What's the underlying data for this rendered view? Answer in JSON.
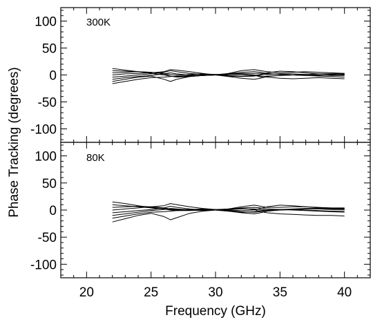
{
  "chart_data": [
    {
      "type": "line",
      "annotation": "300K",
      "xlabel": "Frequency (GHz)",
      "ylabel": "Phase Tracking (degrees)",
      "xlim": [
        18,
        42
      ],
      "ylim": [
        -125,
        125
      ],
      "xticks": [
        20,
        25,
        30,
        35,
        40
      ],
      "yticks": [
        -100,
        -50,
        0,
        50,
        100
      ],
      "grid": false,
      "x": [
        22,
        23,
        24,
        25,
        26,
        26.5,
        27,
        28,
        29,
        30,
        31,
        32,
        33,
        33.5,
        34,
        35,
        36,
        37,
        38,
        39,
        40
      ],
      "series": [
        {
          "values": [
            -16,
            -12,
            -8,
            -5,
            -4,
            -3,
            -2,
            -1,
            0,
            1,
            2,
            3,
            3,
            3,
            2,
            1,
            0,
            -1,
            -2,
            -3,
            -4
          ]
        },
        {
          "values": [
            -12,
            -8,
            -4,
            -2,
            -8,
            -12,
            -8,
            -3,
            -1,
            0,
            1,
            2,
            0,
            -4,
            -2,
            -1,
            0,
            1,
            2,
            2,
            3
          ]
        },
        {
          "values": [
            -8,
            -5,
            -3,
            -1,
            2,
            4,
            2,
            0,
            -1,
            0,
            2,
            5,
            6,
            5,
            3,
            1,
            0,
            -1,
            -1,
            0,
            1
          ]
        },
        {
          "values": [
            -4,
            -2,
            0,
            2,
            5,
            8,
            6,
            3,
            1,
            0,
            -2,
            -3,
            -2,
            0,
            1,
            2,
            2,
            1,
            0,
            -1,
            -1
          ]
        },
        {
          "values": [
            0,
            2,
            3,
            4,
            6,
            10,
            9,
            6,
            3,
            0,
            -3,
            -6,
            -8,
            -6,
            -3,
            -1,
            0,
            1,
            2,
            2,
            2
          ]
        },
        {
          "values": [
            4,
            5,
            6,
            5,
            3,
            1,
            0,
            1,
            2,
            1,
            -1,
            -2,
            -1,
            1,
            4,
            7,
            6,
            4,
            2,
            1,
            0
          ]
        },
        {
          "values": [
            8,
            7,
            6,
            5,
            2,
            -2,
            -4,
            -3,
            -1,
            0,
            1,
            1,
            0,
            -2,
            -4,
            -6,
            -7,
            -6,
            -5,
            -6,
            -7
          ]
        },
        {
          "values": [
            12,
            9,
            6,
            3,
            0,
            -2,
            -3,
            -2,
            -1,
            0,
            3,
            8,
            10,
            8,
            6,
            4,
            5,
            6,
            5,
            4,
            3
          ]
        }
      ]
    },
    {
      "type": "line",
      "annotation": "80K",
      "xlabel": "Frequency (GHz)",
      "ylabel": "Phase Tracking (degrees)",
      "xlim": [
        18,
        42
      ],
      "ylim": [
        -125,
        125
      ],
      "xticks": [
        20,
        25,
        30,
        35,
        40
      ],
      "yticks": [
        -100,
        -50,
        0,
        50,
        100
      ],
      "grid": false,
      "x": [
        22,
        23,
        24,
        25,
        26,
        26.5,
        27,
        28,
        29,
        30,
        31,
        32,
        33,
        33.5,
        34,
        35,
        36,
        37,
        38,
        39,
        40
      ],
      "series": [
        {
          "values": [
            -22,
            -16,
            -10,
            -6,
            -12,
            -18,
            -14,
            -6,
            -2,
            0,
            2,
            3,
            1,
            -3,
            -5,
            -7,
            -8,
            -9,
            -10,
            -10,
            -11
          ]
        },
        {
          "values": [
            -15,
            -11,
            -7,
            -4,
            -3,
            -2,
            -1,
            0,
            0,
            1,
            2,
            4,
            5,
            4,
            2,
            1,
            0,
            -1,
            -2,
            -3,
            -4
          ]
        },
        {
          "values": [
            -10,
            -7,
            -4,
            -1,
            1,
            3,
            2,
            0,
            -1,
            0,
            1,
            2,
            2,
            1,
            0,
            1,
            2,
            3,
            3,
            2,
            1
          ]
        },
        {
          "values": [
            -5,
            -3,
            -1,
            1,
            4,
            7,
            5,
            2,
            0,
            0,
            -2,
            -4,
            -3,
            -1,
            0,
            1,
            1,
            0,
            -1,
            -2,
            -2
          ]
        },
        {
          "values": [
            0,
            2,
            4,
            6,
            8,
            12,
            10,
            6,
            3,
            1,
            -1,
            -3,
            -4,
            -3,
            -1,
            0,
            1,
            2,
            2,
            1,
            1
          ]
        },
        {
          "values": [
            5,
            6,
            7,
            6,
            4,
            2,
            1,
            1,
            1,
            0,
            -2,
            -5,
            -7,
            -5,
            -2,
            0,
            1,
            2,
            3,
            3,
            3
          ]
        },
        {
          "values": [
            10,
            8,
            6,
            4,
            2,
            0,
            -1,
            -1,
            0,
            0,
            2,
            6,
            9,
            7,
            5,
            5,
            6,
            6,
            5,
            4,
            4
          ]
        },
        {
          "values": [
            15,
            12,
            8,
            5,
            3,
            1,
            0,
            1,
            2,
            1,
            0,
            -1,
            0,
            3,
            6,
            9,
            8,
            6,
            4,
            3,
            2
          ]
        }
      ]
    }
  ]
}
